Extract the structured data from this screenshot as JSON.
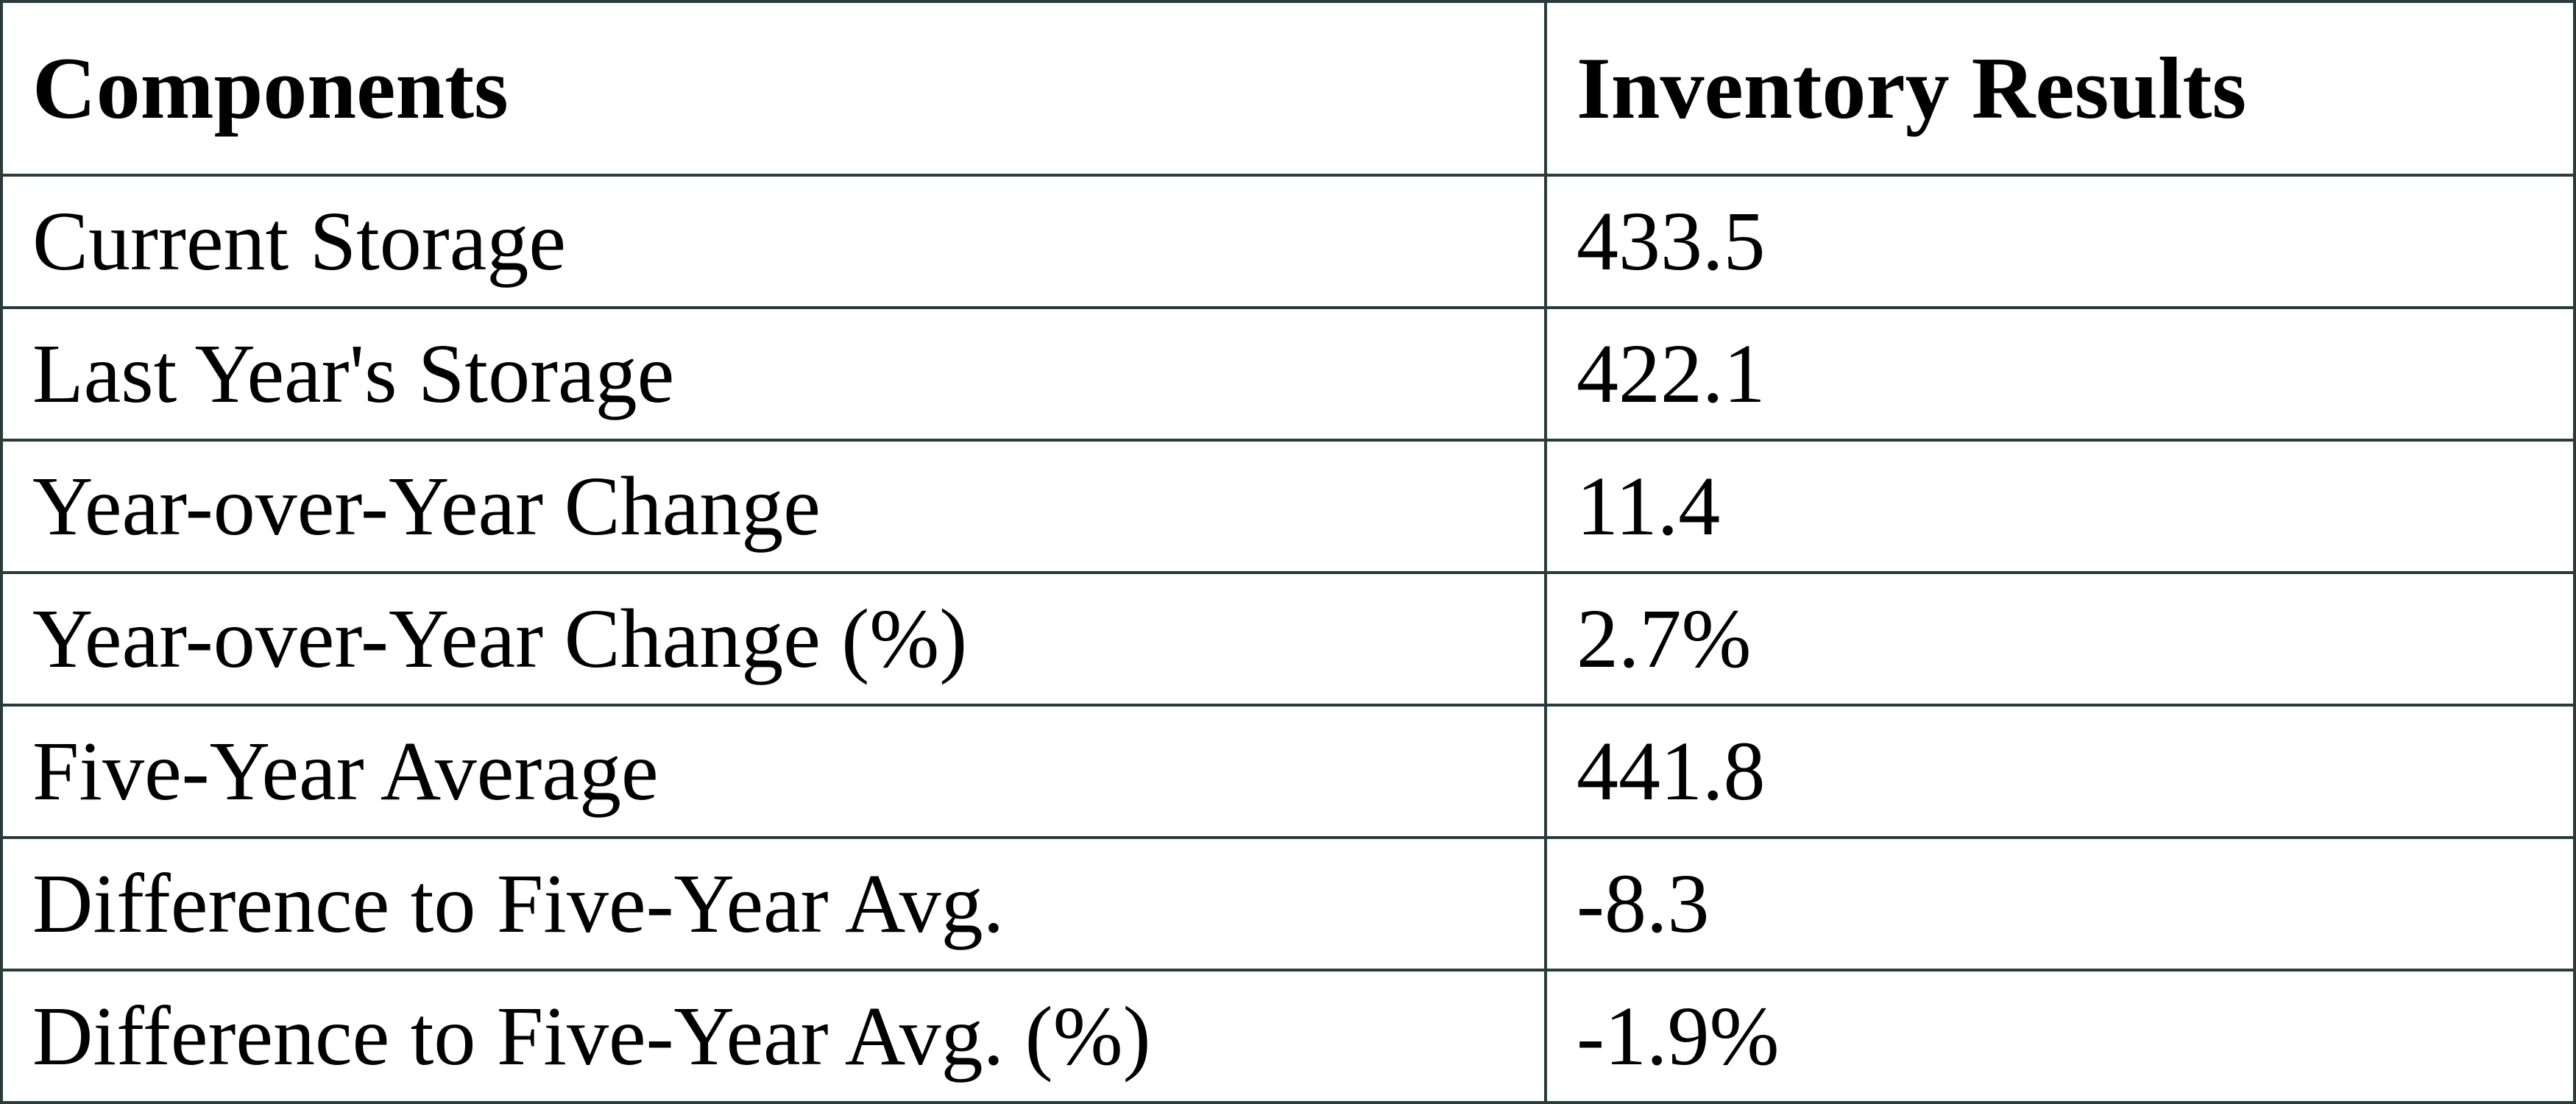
{
  "table": {
    "header": [
      "Components",
      "Inventory Results"
    ],
    "rows": [
      [
        "Current Storage",
        "433.5"
      ],
      [
        "Last Year's Storage",
        "422.1"
      ],
      [
        "Year-over-Year Change",
        "11.4"
      ],
      [
        "Year-over-Year Change (%)",
        "2.7%"
      ],
      [
        "Five-Year Average",
        "441.8"
      ],
      [
        "Difference to Five-Year Avg.",
        "-8.3"
      ],
      [
        "Difference to Five-Year Avg. (%)",
        "-1.9%"
      ]
    ]
  }
}
